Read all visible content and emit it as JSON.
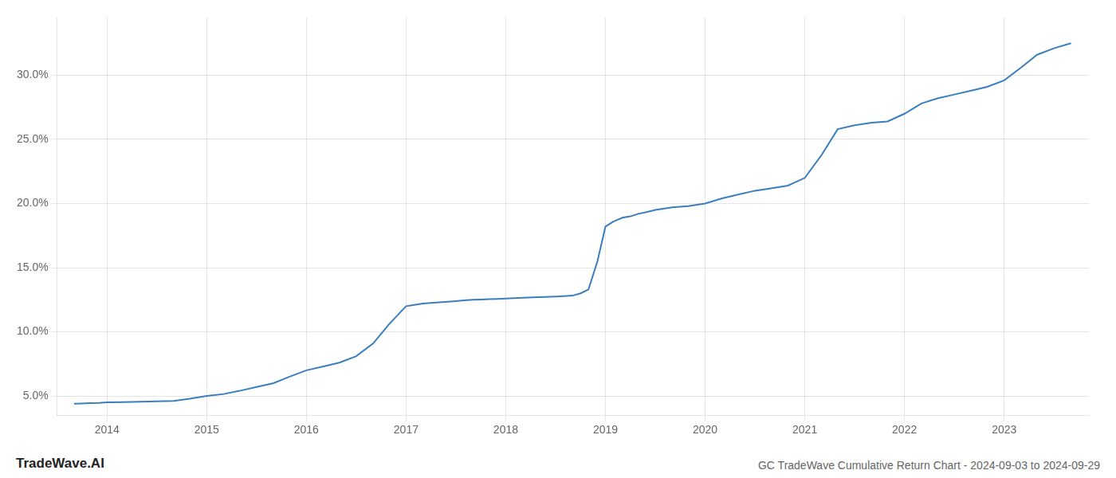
{
  "chart_data": {
    "type": "line",
    "x": [
      2013.67,
      2013.75,
      2013.83,
      2013.92,
      2014.0,
      2014.17,
      2014.33,
      2014.5,
      2014.67,
      2014.83,
      2015.0,
      2015.17,
      2015.33,
      2015.5,
      2015.67,
      2015.83,
      2016.0,
      2016.17,
      2016.33,
      2016.5,
      2016.67,
      2016.83,
      2017.0,
      2017.08,
      2017.17,
      2017.25,
      2017.33,
      2017.42,
      2017.5,
      2017.58,
      2017.67,
      2017.75,
      2017.83,
      2017.92,
      2018.0,
      2018.17,
      2018.33,
      2018.5,
      2018.58,
      2018.67,
      2018.75,
      2018.83,
      2018.92,
      2019.0,
      2019.08,
      2019.17,
      2019.25,
      2019.33,
      2019.42,
      2019.5,
      2019.58,
      2019.67,
      2019.75,
      2019.83,
      2019.92,
      2020.0,
      2020.17,
      2020.33,
      2020.5,
      2020.67,
      2020.83,
      2021.0,
      2021.17,
      2021.33,
      2021.5,
      2021.67,
      2021.83,
      2022.0,
      2022.17,
      2022.33,
      2022.5,
      2022.67,
      2022.83,
      2023.0,
      2023.17,
      2023.33,
      2023.5,
      2023.67
    ],
    "values": [
      4.4,
      4.42,
      4.44,
      4.46,
      4.5,
      4.52,
      4.55,
      4.58,
      4.62,
      4.78,
      5.0,
      5.15,
      5.4,
      5.7,
      6.0,
      6.5,
      7.0,
      7.3,
      7.6,
      8.1,
      9.1,
      10.6,
      12.0,
      12.1,
      12.2,
      12.25,
      12.3,
      12.35,
      12.4,
      12.45,
      12.5,
      12.52,
      12.55,
      12.57,
      12.6,
      12.65,
      12.7,
      12.75,
      12.78,
      12.82,
      13.0,
      13.3,
      15.5,
      18.2,
      18.6,
      18.9,
      19.0,
      19.2,
      19.35,
      19.5,
      19.6,
      19.7,
      19.75,
      19.8,
      19.9,
      20.0,
      20.4,
      20.7,
      21.0,
      21.2,
      21.4,
      22.0,
      23.8,
      25.8,
      26.1,
      26.3,
      26.4,
      27.0,
      27.8,
      28.2,
      28.5,
      28.8,
      29.1,
      29.6,
      30.6,
      31.6,
      32.1,
      32.5
    ],
    "color": "#3a7ebf",
    "xlim": [
      2013.5,
      2023.85
    ],
    "xticks": [
      2014,
      2015,
      2016,
      2017,
      2018,
      2019,
      2020,
      2021,
      2022,
      2023
    ],
    "ylim": [
      3.5,
      34.5
    ],
    "yticks": [
      {
        "value": 5.0,
        "label": "5.0%"
      },
      {
        "value": 10.0,
        "label": "10.0%"
      },
      {
        "value": 15.0,
        "label": "15.0%"
      },
      {
        "value": 20.0,
        "label": "20.0%"
      },
      {
        "value": 25.0,
        "label": "25.0%"
      },
      {
        "value": 30.0,
        "label": "30.0%"
      }
    ],
    "grid": true,
    "annotations": [
      "TradeWave.AI",
      "GC TradeWave Cumulative Return Chart - 2024-09-03 to 2024-09-29"
    ]
  }
}
